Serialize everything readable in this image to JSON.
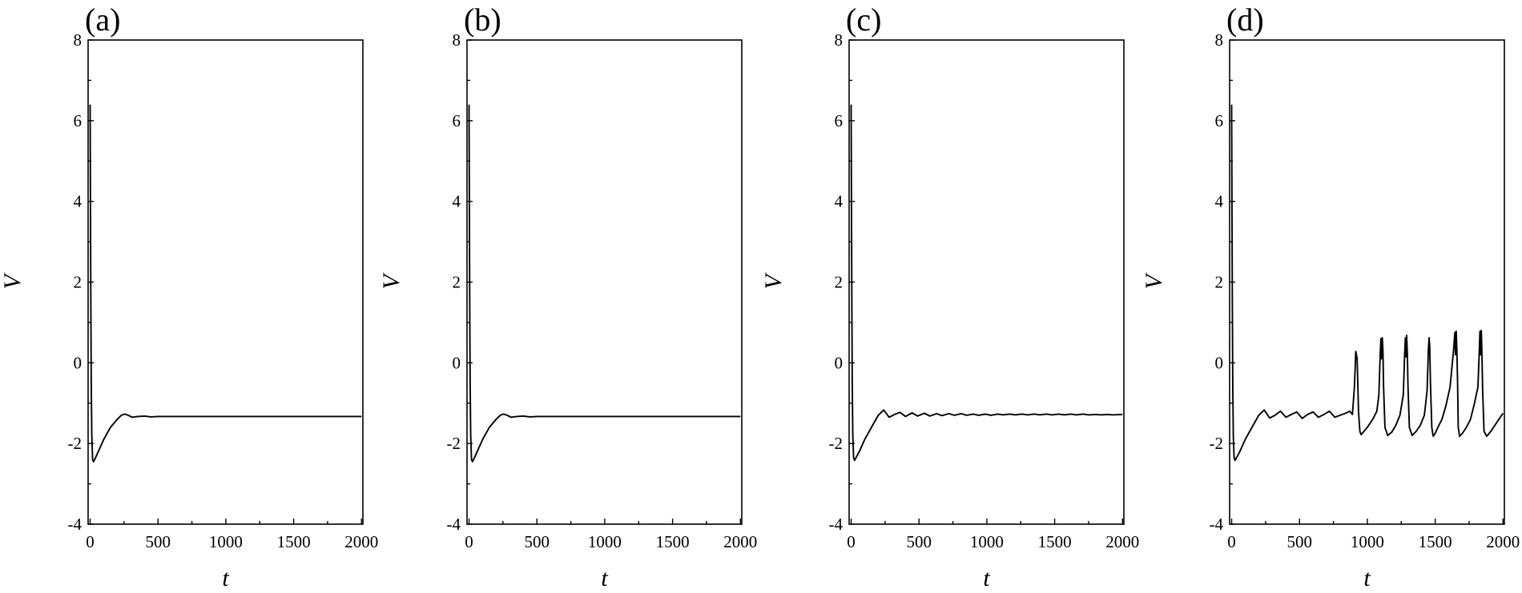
{
  "chart_data": [
    {
      "type": "line",
      "panel_label": "(a)",
      "xlabel": "t",
      "ylabel": "V",
      "xlim": [
        -15,
        2010
      ],
      "ylim": [
        -4,
        8
      ],
      "xticks": [
        0,
        500,
        1000,
        1500,
        2000
      ],
      "xtick_labels": [
        "0",
        "500",
        "1000",
        "1500",
        "2000"
      ],
      "yticks": [
        -4,
        -2,
        0,
        2,
        4,
        6,
        8
      ],
      "ytick_labels": [
        "-4",
        "-2",
        "0",
        "2",
        "4",
        "6",
        "8"
      ],
      "grid": false,
      "series": [
        {
          "x": [
            0,
            3,
            5,
            8,
            12,
            18,
            25,
            40,
            60,
            100,
            150,
            200,
            230,
            255,
            280,
            310,
            350,
            400,
            450,
            500,
            550,
            600,
            700,
            800,
            1000,
            1500,
            2000
          ],
          "y": [
            6.4,
            3.5,
            1.5,
            -0.5,
            -1.8,
            -2.4,
            -2.45,
            -2.35,
            -2.2,
            -1.9,
            -1.6,
            -1.4,
            -1.3,
            -1.27,
            -1.3,
            -1.35,
            -1.33,
            -1.32,
            -1.34,
            -1.33,
            -1.33,
            -1.33,
            -1.33,
            -1.33,
            -1.33,
            -1.33,
            -1.33
          ]
        }
      ]
    },
    {
      "type": "line",
      "panel_label": "(b)",
      "xlabel": "t",
      "ylabel": "V",
      "xlim": [
        -15,
        2010
      ],
      "ylim": [
        -4,
        8
      ],
      "xticks": [
        0,
        500,
        1000,
        1500,
        2000
      ],
      "xtick_labels": [
        "0",
        "500",
        "1000",
        "1500",
        "2000"
      ],
      "yticks": [
        -4,
        -2,
        0,
        2,
        4,
        6,
        8
      ],
      "ytick_labels": [
        "-4",
        "-2",
        "0",
        "2",
        "4",
        "6",
        "8"
      ],
      "grid": false,
      "series": [
        {
          "x": [
            0,
            3,
            5,
            8,
            12,
            18,
            25,
            40,
            60,
            100,
            150,
            200,
            230,
            255,
            280,
            310,
            350,
            400,
            450,
            500,
            550,
            600,
            700,
            800,
            1000,
            1500,
            2000
          ],
          "y": [
            6.4,
            3.5,
            1.5,
            -0.5,
            -1.8,
            -2.4,
            -2.45,
            -2.35,
            -2.2,
            -1.9,
            -1.6,
            -1.4,
            -1.3,
            -1.27,
            -1.3,
            -1.35,
            -1.33,
            -1.32,
            -1.34,
            -1.33,
            -1.33,
            -1.33,
            -1.33,
            -1.33,
            -1.33,
            -1.33,
            -1.33
          ]
        }
      ]
    },
    {
      "type": "line",
      "panel_label": "(c)",
      "xlabel": "t",
      "ylabel": "V",
      "xlim": [
        -15,
        2010
      ],
      "ylim": [
        -4,
        8
      ],
      "xticks": [
        0,
        500,
        1000,
        1500,
        2000
      ],
      "xtick_labels": [
        "0",
        "500",
        "1000",
        "1500",
        "2000"
      ],
      "yticks": [
        -4,
        -2,
        0,
        2,
        4,
        6,
        8
      ],
      "ytick_labels": [
        "-4",
        "-2",
        "0",
        "2",
        "4",
        "6",
        "8"
      ],
      "grid": false,
      "series": [
        {
          "x": [
            0,
            3,
            5,
            8,
            12,
            18,
            25,
            60,
            100,
            150,
            200,
            240,
            280,
            320,
            360,
            400,
            450,
            490,
            540,
            580,
            630,
            670,
            720,
            760,
            810,
            850,
            900,
            940,
            990,
            1030,
            1080,
            1120,
            1170,
            1210,
            1260,
            1300,
            1350,
            1390,
            1440,
            1480,
            1530,
            1570,
            1620,
            1660,
            1710,
            1750,
            1800,
            1840,
            1890,
            1930,
            2000
          ],
          "y": [
            6.4,
            3.5,
            1.5,
            -0.5,
            -1.8,
            -2.35,
            -2.42,
            -2.2,
            -1.9,
            -1.6,
            -1.3,
            -1.17,
            -1.35,
            -1.28,
            -1.23,
            -1.33,
            -1.24,
            -1.32,
            -1.25,
            -1.32,
            -1.26,
            -1.31,
            -1.26,
            -1.3,
            -1.26,
            -1.3,
            -1.27,
            -1.3,
            -1.27,
            -1.3,
            -1.27,
            -1.29,
            -1.27,
            -1.29,
            -1.27,
            -1.29,
            -1.27,
            -1.29,
            -1.27,
            -1.29,
            -1.27,
            -1.29,
            -1.27,
            -1.29,
            -1.27,
            -1.29,
            -1.28,
            -1.29,
            -1.28,
            -1.29,
            -1.28
          ]
        }
      ]
    },
    {
      "type": "line",
      "panel_label": "(d)",
      "xlabel": "t",
      "ylabel": "V",
      "xlim": [
        -15,
        2010
      ],
      "ylim": [
        -4,
        8
      ],
      "xticks": [
        0,
        500,
        1000,
        1500,
        2000
      ],
      "xtick_labels": [
        "0",
        "500",
        "1000",
        "1500",
        "2000"
      ],
      "yticks": [
        -4,
        -2,
        0,
        2,
        4,
        6,
        8
      ],
      "ytick_labels": [
        "-4",
        "-2",
        "0",
        "2",
        "4",
        "6",
        "8"
      ],
      "grid": false,
      "series": [
        {
          "x": [
            0,
            3,
            5,
            8,
            12,
            18,
            25,
            60,
            100,
            150,
            200,
            240,
            280,
            320,
            360,
            400,
            440,
            480,
            520,
            560,
            600,
            640,
            680,
            720,
            760,
            800,
            840,
            870,
            890,
            905,
            915,
            925,
            935,
            945,
            955,
            975,
            1000,
            1040,
            1070,
            1085,
            1095,
            1100,
            1105,
            1110,
            1115,
            1120,
            1130,
            1150,
            1180,
            1210,
            1240,
            1265,
            1275,
            1280,
            1285,
            1290,
            1295,
            1300,
            1310,
            1330,
            1360,
            1390,
            1420,
            1440,
            1450,
            1455,
            1460,
            1465,
            1475,
            1485,
            1500,
            1520,
            1550,
            1580,
            1610,
            1635,
            1645,
            1650,
            1655,
            1660,
            1665,
            1670,
            1680,
            1700,
            1730,
            1760,
            1790,
            1815,
            1825,
            1830,
            1835,
            1840,
            1845,
            1850,
            1860,
            1880,
            1910,
            1940,
            1970,
            2000
          ],
          "y": [
            6.4,
            3.5,
            1.5,
            -0.5,
            -1.8,
            -2.35,
            -2.42,
            -2.2,
            -1.9,
            -1.6,
            -1.3,
            -1.17,
            -1.37,
            -1.3,
            -1.2,
            -1.35,
            -1.28,
            -1.22,
            -1.38,
            -1.28,
            -1.22,
            -1.35,
            -1.28,
            -1.2,
            -1.35,
            -1.3,
            -1.25,
            -1.2,
            -1.28,
            -0.6,
            0.28,
            0.1,
            -1.2,
            -1.7,
            -1.78,
            -1.7,
            -1.6,
            -1.4,
            -1.2,
            -0.8,
            0.2,
            0.6,
            0.1,
            0.62,
            0.3,
            -0.6,
            -1.6,
            -1.8,
            -1.72,
            -1.55,
            -1.3,
            -0.8,
            0.2,
            0.62,
            0.15,
            0.68,
            0.2,
            -0.6,
            -1.6,
            -1.8,
            -1.7,
            -1.55,
            -1.3,
            -0.7,
            0.3,
            0.62,
            0.4,
            -0.5,
            -1.6,
            -1.82,
            -1.75,
            -1.6,
            -1.4,
            -1.05,
            -0.6,
            0.3,
            0.75,
            0.2,
            0.78,
            0.3,
            -0.5,
            -1.6,
            -1.82,
            -1.75,
            -1.6,
            -1.4,
            -1.0,
            -0.6,
            0.3,
            0.78,
            0.2,
            0.8,
            0.1,
            -0.7,
            -1.7,
            -1.82,
            -1.7,
            -1.55,
            -1.4,
            -1.25
          ]
        }
      ]
    }
  ]
}
